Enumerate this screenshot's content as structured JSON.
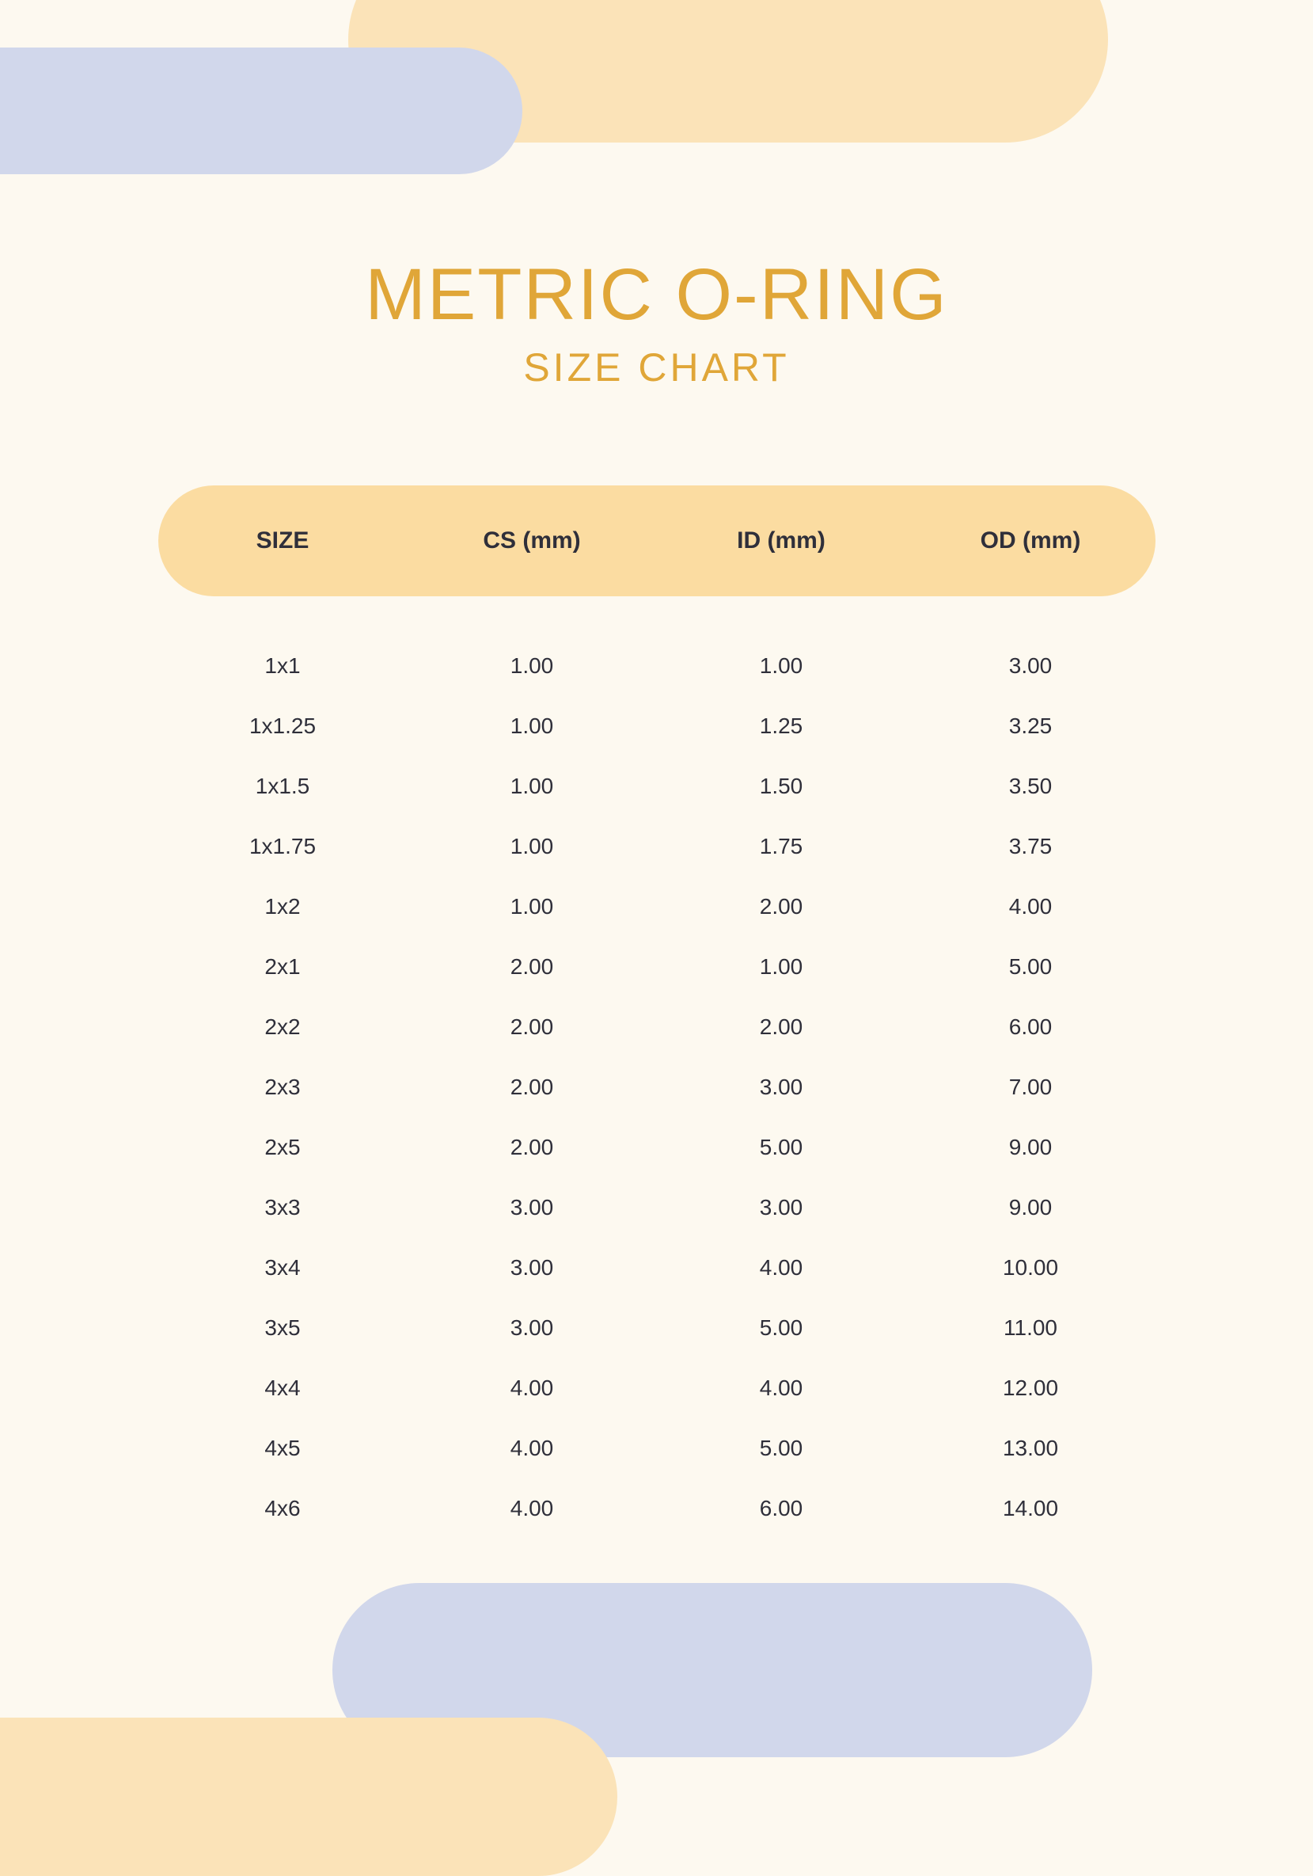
{
  "colors": {
    "background": "#fdf9f0",
    "accent_peach": "#fbe3b8",
    "accent_peach_header": "#fbdca1",
    "accent_blue": "#d1d7eb",
    "title_color": "#e0a638",
    "text_color": "#2f2f3a"
  },
  "typography": {
    "title_fontsize": 92,
    "subtitle_fontsize": 50,
    "header_fontsize": 30,
    "cell_fontsize": 28
  },
  "header": {
    "title": "METRIC O-RING",
    "subtitle": "SIZE CHART"
  },
  "table": {
    "type": "table",
    "columns": [
      "SIZE",
      "CS (mm)",
      "ID (mm)",
      "OD (mm)"
    ],
    "rows": [
      [
        "1x1",
        "1.00",
        "1.00",
        "3.00"
      ],
      [
        "1x1.25",
        "1.00",
        "1.25",
        "3.25"
      ],
      [
        "1x1.5",
        "1.00",
        "1.50",
        "3.50"
      ],
      [
        "1x1.75",
        "1.00",
        "1.75",
        "3.75"
      ],
      [
        "1x2",
        "1.00",
        "2.00",
        "4.00"
      ],
      [
        "2x1",
        "2.00",
        "1.00",
        "5.00"
      ],
      [
        "2x2",
        "2.00",
        "2.00",
        "6.00"
      ],
      [
        "2x3",
        "2.00",
        "3.00",
        "7.00"
      ],
      [
        "2x5",
        "2.00",
        "5.00",
        "9.00"
      ],
      [
        "3x3",
        "3.00",
        "3.00",
        "9.00"
      ],
      [
        "3x4",
        "3.00",
        "4.00",
        "10.00"
      ],
      [
        "3x5",
        "3.00",
        "5.00",
        "11.00"
      ],
      [
        "4x4",
        "4.00",
        "4.00",
        "12.00"
      ],
      [
        "4x5",
        "4.00",
        "5.00",
        "13.00"
      ],
      [
        "4x6",
        "4.00",
        "6.00",
        "14.00"
      ]
    ]
  }
}
